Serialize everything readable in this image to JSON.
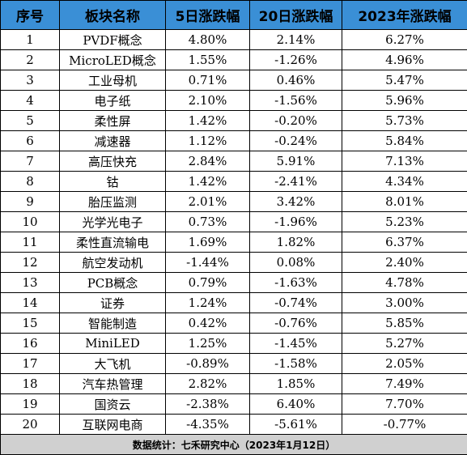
{
  "colors": {
    "header_bg": "#3a8fd6",
    "footer_bg": "#d0d0d0",
    "border": "#000000"
  },
  "table": {
    "headers": [
      "序号",
      "板块名称",
      "5日涨跌幅",
      "20日涨跌幅",
      "2023年涨跌幅"
    ],
    "rows": [
      [
        "1",
        "PVDF概念",
        "4.80%",
        "2.14%",
        "6.27%"
      ],
      [
        "2",
        "MicroLED概念",
        "1.55%",
        "-1.26%",
        "4.96%"
      ],
      [
        "3",
        "工业母机",
        "0.71%",
        "0.46%",
        "5.47%"
      ],
      [
        "4",
        "电子纸",
        "2.10%",
        "-1.56%",
        "5.96%"
      ],
      [
        "5",
        "柔性屏",
        "1.42%",
        "-0.20%",
        "5.73%"
      ],
      [
        "6",
        "减速器",
        "1.12%",
        "-0.24%",
        "5.84%"
      ],
      [
        "7",
        "高压快充",
        "2.84%",
        "5.91%",
        "7.13%"
      ],
      [
        "8",
        "钴",
        "1.42%",
        "-2.41%",
        "4.34%"
      ],
      [
        "9",
        "胎压监测",
        "2.01%",
        "3.42%",
        "8.01%"
      ],
      [
        "10",
        "光学光电子",
        "0.73%",
        "-1.96%",
        "5.23%"
      ],
      [
        "11",
        "柔性直流输电",
        "1.69%",
        "1.82%",
        "6.37%"
      ],
      [
        "12",
        "航空发动机",
        "-1.44%",
        "0.08%",
        "2.40%"
      ],
      [
        "13",
        "PCB概念",
        "0.79%",
        "-1.63%",
        "4.78%"
      ],
      [
        "14",
        "证券",
        "1.24%",
        "-0.74%",
        "3.00%"
      ],
      [
        "15",
        "智能制造",
        "0.42%",
        "-0.76%",
        "5.85%"
      ],
      [
        "16",
        "MiniLED",
        "1.25%",
        "-1.45%",
        "5.27%"
      ],
      [
        "17",
        "大飞机",
        "-0.89%",
        "-1.58%",
        "2.05%"
      ],
      [
        "18",
        "汽车热管理",
        "2.82%",
        "1.85%",
        "7.49%"
      ],
      [
        "19",
        "国资云",
        "-2.38%",
        "6.40%",
        "7.70%"
      ],
      [
        "20",
        "互联网电商",
        "-4.35%",
        "-5.61%",
        "-0.77%"
      ]
    ],
    "footer": "数据统计：七禾研究中心（2023年1月12日）"
  }
}
